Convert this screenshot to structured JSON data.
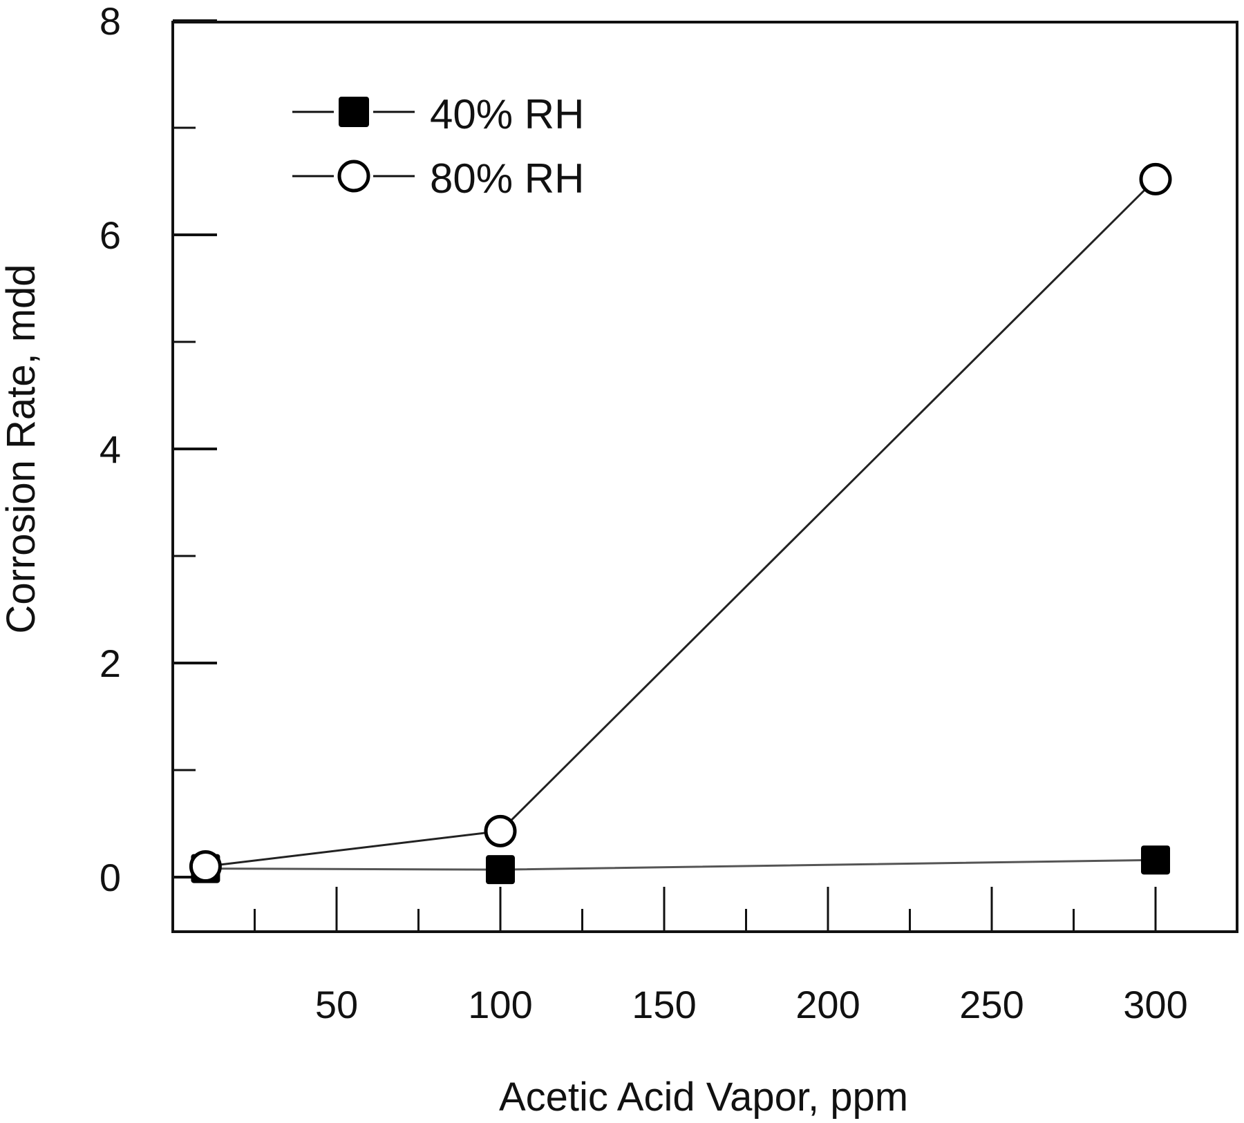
{
  "chart_data": {
    "type": "line",
    "title": "",
    "xlabel": "Acetic Acid Vapor, ppm",
    "ylabel": "Corrosion Rate, mdd",
    "xlim": [
      0,
      325
    ],
    "ylim": [
      -0.5,
      8
    ],
    "x_ticks": [
      50,
      100,
      150,
      200,
      250,
      300
    ],
    "x_tick_labels": [
      "50",
      "100",
      "150",
      "200",
      "250",
      "300"
    ],
    "x_minor_ticks": [
      25,
      75,
      125,
      175,
      225,
      275
    ],
    "y_ticks": [
      0,
      2,
      4,
      6,
      8
    ],
    "y_tick_labels": [
      "0",
      "2",
      "4",
      "6",
      "8"
    ],
    "y_minor_ticks": [
      1,
      3,
      5,
      7
    ],
    "grid": false,
    "legend_position": "upper left",
    "series": [
      {
        "name": "40% RH",
        "marker": "filled-square",
        "color": "#000000",
        "x": [
          10,
          100,
          300
        ],
        "values": [
          0.08,
          0.07,
          0.16
        ]
      },
      {
        "name": "80% RH",
        "marker": "open-circle",
        "color": "#000000",
        "x": [
          10,
          100,
          300
        ],
        "values": [
          0.1,
          0.43,
          6.52
        ]
      }
    ]
  },
  "legend": {
    "items": [
      {
        "label": "40% RH"
      },
      {
        "label": "80% RH"
      }
    ]
  },
  "axes": {
    "x_title": "Acetic Acid Vapor, ppm",
    "y_title": "Corrosion Rate, mdd"
  }
}
